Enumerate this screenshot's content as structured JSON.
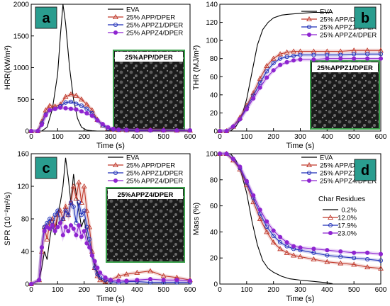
{
  "chart_data": [
    {
      "panel": "a",
      "type": "line",
      "xlabel": "Time (s)",
      "ylabel": "HRR(kW/m²)",
      "xlim": [
        0,
        600
      ],
      "ylim": [
        0,
        2000
      ],
      "xticks": [
        0,
        100,
        200,
        300,
        400,
        500,
        600
      ],
      "yticks": [
        0,
        500,
        1000,
        1500,
        2000
      ],
      "legend_position": "top-right",
      "inset_label": "25%APP/DPER",
      "series": [
        {
          "name": "EVA",
          "color": "#000000",
          "marker": "none",
          "x": [
            0,
            40,
            60,
            80,
            100,
            110,
            120,
            130,
            145,
            160,
            175,
            190,
            210,
            230,
            250,
            270
          ],
          "y": [
            0,
            0,
            60,
            350,
            900,
            1500,
            2000,
            1700,
            1000,
            500,
            200,
            60,
            15,
            5,
            0,
            0
          ]
        },
        {
          "name": "25% APP/DPER",
          "color": "#c0392b",
          "marker": "triangle",
          "x": [
            0,
            25,
            40,
            55,
            70,
            90,
            110,
            130,
            150,
            170,
            190,
            210,
            230,
            250,
            270,
            290,
            310,
            330,
            360,
            400,
            450,
            500,
            550,
            600
          ],
          "y": [
            0,
            0,
            150,
            330,
            400,
            390,
            420,
            540,
            580,
            560,
            500,
            420,
            330,
            180,
            90,
            40,
            25,
            20,
            15,
            15,
            20,
            15,
            10,
            10
          ]
        },
        {
          "name": "25% APPZ1/DPER",
          "color": "#1f2fb8",
          "marker": "circle",
          "x": [
            0,
            25,
            40,
            55,
            70,
            90,
            110,
            130,
            150,
            170,
            190,
            210,
            230,
            250,
            270,
            290,
            310,
            330,
            360,
            400,
            450,
            500,
            550,
            600
          ],
          "y": [
            0,
            0,
            120,
            260,
            330,
            350,
            390,
            450,
            460,
            430,
            400,
            350,
            280,
            170,
            90,
            40,
            25,
            20,
            15,
            10,
            10,
            10,
            10,
            10
          ]
        },
        {
          "name": "25% APPZ4/DPER",
          "color": "#8e24d0",
          "marker": "circle",
          "x": [
            0,
            25,
            40,
            55,
            70,
            90,
            110,
            130,
            150,
            170,
            190,
            210,
            230,
            250,
            270,
            290,
            310,
            330,
            360,
            400,
            450,
            500,
            550,
            600
          ],
          "y": [
            0,
            0,
            100,
            250,
            330,
            350,
            370,
            360,
            350,
            340,
            310,
            280,
            240,
            170,
            110,
            60,
            35,
            25,
            20,
            15,
            15,
            10,
            10,
            10
          ]
        }
      ]
    },
    {
      "panel": "b",
      "type": "line",
      "xlabel": "Time (s)",
      "ylabel": "THR (MJ/m²)",
      "xlim": [
        0,
        600
      ],
      "ylim": [
        0,
        140
      ],
      "xticks": [
        0,
        100,
        200,
        300,
        400,
        500,
        600
      ],
      "yticks": [
        0,
        20,
        40,
        60,
        80,
        100,
        120,
        140
      ],
      "legend_position": "top-right",
      "inset_label": "25%APPZ1/DPER",
      "series": [
        {
          "name": "EVA",
          "color": "#000000",
          "marker": "none",
          "x": [
            0,
            40,
            60,
            80,
            100,
            120,
            140,
            160,
            180,
            200,
            230,
            260,
            300,
            350,
            420
          ],
          "y": [
            0,
            0,
            5,
            15,
            35,
            65,
            95,
            112,
            120,
            125,
            128,
            129,
            130,
            131,
            131
          ]
        },
        {
          "name": "25% APP/DPER",
          "color": "#c0392b",
          "marker": "triangle",
          "x": [
            0,
            25,
            50,
            75,
            100,
            125,
            150,
            175,
            200,
            225,
            250,
            275,
            300,
            350,
            400,
            450,
            500,
            550,
            600
          ],
          "y": [
            0,
            0,
            5,
            15,
            28,
            42,
            58,
            72,
            80,
            85,
            87,
            88,
            88,
            88,
            88,
            88,
            89,
            89,
            89
          ]
        },
        {
          "name": "25% APPZ1/DPER",
          "color": "#1f2fb8",
          "marker": "circle",
          "x": [
            0,
            25,
            50,
            75,
            100,
            125,
            150,
            175,
            200,
            225,
            250,
            275,
            300,
            350,
            400,
            450,
            500,
            550,
            600
          ],
          "y": [
            0,
            0,
            5,
            13,
            26,
            39,
            53,
            66,
            75,
            80,
            82,
            83,
            84,
            84,
            84,
            84,
            85,
            85,
            85
          ]
        },
        {
          "name": "25% APPZ4/DPER",
          "color": "#8e24d0",
          "marker": "circle",
          "x": [
            0,
            25,
            50,
            75,
            100,
            125,
            150,
            175,
            200,
            225,
            250,
            275,
            300,
            350,
            400,
            450,
            500,
            550,
            600
          ],
          "y": [
            0,
            0,
            5,
            13,
            24,
            36,
            48,
            59,
            67,
            73,
            76,
            78,
            79,
            79,
            80,
            80,
            80,
            80,
            80
          ]
        }
      ]
    },
    {
      "panel": "c",
      "type": "line",
      "xlabel": "Time (s)",
      "ylabel": "SPR (10⁻²m²/s)",
      "xlim": [
        0,
        600
      ],
      "ylim": [
        0,
        160
      ],
      "xticks": [
        0,
        100,
        200,
        300,
        400,
        500,
        600
      ],
      "yticks": [
        0,
        40,
        80,
        120,
        160
      ],
      "legend_position": "top-right",
      "inset_label": "25%APPZ4/DPER",
      "series": [
        {
          "name": "EVA",
          "color": "#000000",
          "marker": "none",
          "x": [
            0,
            30,
            40,
            50,
            60,
            70,
            80,
            90,
            100,
            110,
            120,
            130,
            140,
            150,
            160,
            170,
            180,
            190,
            200,
            210,
            220,
            230,
            240,
            250,
            260,
            270,
            280,
            290
          ],
          "y": [
            0,
            5,
            20,
            40,
            30,
            55,
            75,
            60,
            85,
            100,
            120,
            155,
            130,
            100,
            135,
            110,
            90,
            70,
            80,
            60,
            45,
            35,
            25,
            15,
            8,
            4,
            2,
            0
          ]
        },
        {
          "name": "25% APP/DPER",
          "color": "#c0392b",
          "marker": "triangle",
          "x": [
            0,
            30,
            40,
            50,
            60,
            70,
            80,
            90,
            100,
            110,
            120,
            130,
            140,
            150,
            160,
            170,
            180,
            190,
            200,
            210,
            220,
            230,
            240,
            250,
            260,
            280,
            300,
            330,
            360,
            400,
            450,
            500,
            550,
            600
          ],
          "y": [
            0,
            5,
            40,
            70,
            55,
            75,
            80,
            70,
            85,
            90,
            80,
            95,
            85,
            100,
            120,
            105,
            125,
            100,
            120,
            90,
            70,
            40,
            20,
            10,
            5,
            3,
            5,
            10,
            12,
            14,
            16,
            10,
            8,
            5
          ]
        },
        {
          "name": "25% APPZ1/DPER",
          "color": "#1f2fb8",
          "marker": "circle",
          "x": [
            0,
            30,
            40,
            50,
            60,
            70,
            80,
            90,
            100,
            110,
            120,
            130,
            140,
            150,
            160,
            170,
            180,
            190,
            200,
            210,
            220,
            230,
            240,
            250,
            260,
            280,
            300,
            330,
            360,
            400,
            450,
            500,
            550,
            600
          ],
          "y": [
            0,
            5,
            45,
            70,
            75,
            80,
            70,
            85,
            90,
            75,
            80,
            90,
            85,
            100,
            95,
            75,
            100,
            85,
            90,
            70,
            55,
            35,
            20,
            12,
            8,
            5,
            3,
            2,
            3,
            3,
            2,
            2,
            2,
            2
          ]
        },
        {
          "name": "25% APPZ4/DPER",
          "color": "#8e24d0",
          "marker": "circle",
          "x": [
            0,
            30,
            40,
            50,
            60,
            70,
            80,
            90,
            100,
            110,
            120,
            130,
            140,
            150,
            160,
            170,
            180,
            190,
            200,
            210,
            220,
            230,
            240,
            250,
            260,
            280,
            300,
            330,
            360,
            400,
            450,
            500,
            550,
            600
          ],
          "y": [
            0,
            5,
            45,
            65,
            70,
            68,
            72,
            65,
            70,
            75,
            60,
            70,
            65,
            72,
            68,
            60,
            72,
            58,
            65,
            50,
            45,
            35,
            28,
            20,
            14,
            8,
            5,
            4,
            4,
            5,
            6,
            5,
            5,
            4
          ]
        }
      ]
    },
    {
      "panel": "d",
      "type": "line",
      "xlabel": "Time (s)",
      "ylabel": "Mass (%)",
      "xlim": [
        0,
        600
      ],
      "ylim": [
        0,
        100
      ],
      "xticks": [
        0,
        100,
        200,
        300,
        400,
        500,
        600
      ],
      "yticks": [
        0,
        20,
        40,
        60,
        80,
        100
      ],
      "legend_position": "top-right",
      "residue_title": "Char Residues",
      "residues": [
        "0.2%",
        "12.0%",
        "17.9%",
        "23.0%"
      ],
      "series": [
        {
          "name": "EVA",
          "color": "#000000",
          "marker": "none",
          "x": [
            0,
            40,
            60,
            80,
            100,
            120,
            140,
            160,
            180,
            200,
            230,
            260,
            300,
            350,
            400,
            420
          ],
          "y": [
            100,
            100,
            95,
            85,
            70,
            48,
            30,
            18,
            12,
            9,
            6,
            4,
            3,
            2,
            1,
            0.2
          ]
        },
        {
          "name": "25% APP/DPER",
          "color": "#c0392b",
          "marker": "triangle",
          "x": [
            0,
            25,
            50,
            75,
            100,
            125,
            150,
            175,
            200,
            225,
            250,
            275,
            300,
            350,
            400,
            450,
            500,
            550,
            600
          ],
          "y": [
            100,
            100,
            95,
            88,
            76,
            63,
            50,
            40,
            32,
            27,
            24,
            22,
            21,
            19,
            17,
            16,
            15,
            13,
            12
          ]
        },
        {
          "name": "25% APPZ1/DPER",
          "color": "#1f2fb8",
          "marker": "circle",
          "x": [
            0,
            25,
            50,
            75,
            100,
            125,
            150,
            175,
            200,
            225,
            250,
            275,
            300,
            350,
            400,
            450,
            500,
            550,
            600
          ],
          "y": [
            100,
            100,
            96,
            89,
            78,
            66,
            54,
            44,
            37,
            32,
            29,
            27,
            26,
            24,
            22,
            21,
            20,
            19,
            18
          ]
        },
        {
          "name": "25% APPZ4/DPER",
          "color": "#8e24d0",
          "marker": "circle",
          "x": [
            0,
            25,
            50,
            75,
            100,
            125,
            150,
            175,
            200,
            225,
            250,
            275,
            300,
            350,
            400,
            450,
            500,
            550,
            600
          ],
          "y": [
            100,
            100,
            96,
            90,
            79,
            68,
            57,
            48,
            41,
            36,
            32,
            29,
            28,
            27,
            26,
            25,
            24,
            24,
            23
          ]
        }
      ]
    }
  ]
}
